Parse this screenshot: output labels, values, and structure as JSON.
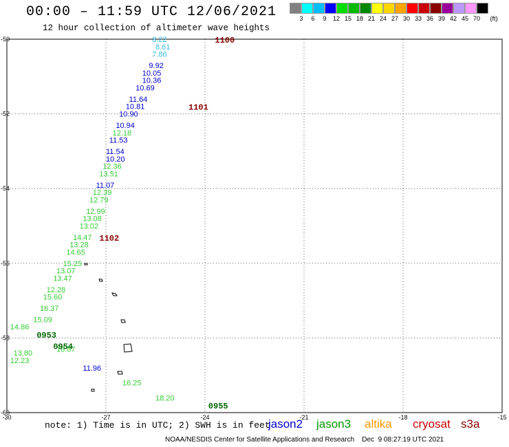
{
  "title": "00:00 – 11:59 UTC 12/06/2021",
  "subtitle": "12 hour collection of altimeter wave heights",
  "legend": {
    "unit": "(ft)",
    "colors": [
      "#808080",
      "#00ffff",
      "#00bfff",
      "#0000ff",
      "#00dd00",
      "#00bb00",
      "#008800",
      "#ffff00",
      "#ffd700",
      "#ffa500",
      "#ff0000",
      "#cc0000",
      "#8b0000",
      "#990099",
      "#bb99ff",
      "#ff99ff",
      "#000000"
    ],
    "labels": [
      "3",
      "6",
      "9",
      "12",
      "15",
      "18",
      "21",
      "24",
      "27",
      "30",
      "33",
      "36",
      "39",
      "42",
      "45",
      "70"
    ]
  },
  "chart_data": {
    "type": "map",
    "x_ticks": [
      "-30",
      "-27",
      "-24",
      "-21",
      "-18",
      "-15"
    ],
    "y_ticks": [
      "-50",
      "-52",
      "-54",
      "-56",
      "-58",
      "-60"
    ],
    "xlim": [
      -30,
      -15
    ],
    "ylim": [
      -60,
      -50
    ],
    "grid": true,
    "times": [
      {
        "text": "1100",
        "lon": -23.7,
        "lat": -50.0,
        "color": "#880000"
      },
      {
        "text": "1101",
        "lon": -24.5,
        "lat": -51.8,
        "color": "#880000"
      },
      {
        "text": "1102",
        "lon": -27.2,
        "lat": -55.3,
        "color": "#880000"
      },
      {
        "text": "0953",
        "lon": -29.1,
        "lat": -57.9,
        "color": "#006600"
      },
      {
        "text": "0954",
        "lon": -28.6,
        "lat": -58.2,
        "color": "#006600"
      },
      {
        "text": "0955",
        "lon": -23.9,
        "lat": -59.8,
        "color": "#006600"
      }
    ],
    "points": [
      {
        "swh": "8.22",
        "lon": -25.6,
        "lat": -50.0,
        "color": "#33bbdd"
      },
      {
        "swh": "8.61",
        "lon": -25.5,
        "lat": -50.2,
        "color": "#33bbdd"
      },
      {
        "swh": "7.86",
        "lon": -25.6,
        "lat": -50.4,
        "color": "#33bbdd"
      },
      {
        "swh": "9.92",
        "lon": -25.7,
        "lat": -50.7,
        "color": "#0000cc"
      },
      {
        "swh": "10.05",
        "lon": -25.9,
        "lat": -50.9,
        "color": "#0000cc"
      },
      {
        "swh": "10.36",
        "lon": -25.9,
        "lat": -51.1,
        "color": "#0000cc"
      },
      {
        "swh": "10.69",
        "lon": -26.1,
        "lat": -51.3,
        "color": "#0000cc"
      },
      {
        "swh": "11.64",
        "lon": -26.3,
        "lat": -51.6,
        "color": "#0000cc"
      },
      {
        "swh": "10.81",
        "lon": -26.4,
        "lat": -51.8,
        "color": "#0000cc"
      },
      {
        "swh": "10.90",
        "lon": -26.6,
        "lat": -52.0,
        "color": "#0000cc"
      },
      {
        "swh": "10.94",
        "lon": -26.7,
        "lat": -52.3,
        "color": "#0000cc"
      },
      {
        "swh": "12.18",
        "lon": -26.8,
        "lat": -52.5,
        "color": "#33cc33"
      },
      {
        "swh": "11.53",
        "lon": -26.9,
        "lat": -52.7,
        "color": "#0000cc"
      },
      {
        "swh": "11.54",
        "lon": -27.0,
        "lat": -53.0,
        "color": "#0000cc"
      },
      {
        "swh": "10.20",
        "lon": -27.0,
        "lat": -53.2,
        "color": "#0000cc"
      },
      {
        "swh": "12.36",
        "lon": -27.1,
        "lat": -53.4,
        "color": "#33cc33"
      },
      {
        "swh": "13.51",
        "lon": -27.2,
        "lat": -53.6,
        "color": "#33cc33"
      },
      {
        "swh": "11.07",
        "lon": -27.3,
        "lat": -53.9,
        "color": "#0000cc"
      },
      {
        "swh": "12.39",
        "lon": -27.4,
        "lat": -54.1,
        "color": "#33cc33"
      },
      {
        "swh": "12.79",
        "lon": -27.5,
        "lat": -54.3,
        "color": "#33cc33"
      },
      {
        "swh": "12.99",
        "lon": -27.6,
        "lat": -54.6,
        "color": "#33cc33"
      },
      {
        "swh": "13.08",
        "lon": -27.7,
        "lat": -54.8,
        "color": "#33cc33"
      },
      {
        "swh": "13.02",
        "lon": -27.8,
        "lat": -55.0,
        "color": "#33cc33"
      },
      {
        "swh": "14.47",
        "lon": -28.0,
        "lat": -55.3,
        "color": "#33cc33"
      },
      {
        "swh": "13.28",
        "lon": -28.1,
        "lat": -55.5,
        "color": "#33cc33"
      },
      {
        "swh": "14.65",
        "lon": -28.2,
        "lat": -55.7,
        "color": "#33cc33"
      },
      {
        "swh": "15.25",
        "lon": -28.3,
        "lat": -56.0,
        "color": "#33cc33"
      },
      {
        "swh": "13.07",
        "lon": -28.5,
        "lat": -56.2,
        "color": "#33cc33"
      },
      {
        "swh": "13.47",
        "lon": -28.6,
        "lat": -56.4,
        "color": "#33cc33"
      },
      {
        "swh": "12.28",
        "lon": -28.8,
        "lat": -56.7,
        "color": "#33cc33"
      },
      {
        "swh": "15.60",
        "lon": -28.9,
        "lat": -56.9,
        "color": "#33cc33"
      },
      {
        "swh": "16.37",
        "lon": -29.0,
        "lat": -57.2,
        "color": "#33cc33"
      },
      {
        "swh": "15.09",
        "lon": -29.2,
        "lat": -57.5,
        "color": "#33cc33"
      },
      {
        "swh": "14.86",
        "lon": -29.9,
        "lat": -57.7,
        "color": "#33cc33"
      },
      {
        "swh": "13.80",
        "lon": -29.8,
        "lat": -58.4,
        "color": "#33cc33"
      },
      {
        "swh": "12.23",
        "lon": -29.9,
        "lat": -58.6,
        "color": "#33cc33"
      },
      {
        "swh": "16.87",
        "lon": -28.5,
        "lat": -58.3,
        "color": "#33cc33"
      },
      {
        "swh": "11.96",
        "lon": -27.7,
        "lat": -58.8,
        "color": "#0000cc"
      },
      {
        "swh": "16.25",
        "lon": -26.5,
        "lat": -59.2,
        "color": "#33cc33"
      },
      {
        "swh": "18.20",
        "lon": -25.5,
        "lat": -59.6,
        "color": "#33cc33"
      }
    ]
  },
  "note": "note: 1) Time is in UTC; 2) SWH is in feet",
  "satellites": [
    {
      "name": "jason2",
      "color": "#0000cc"
    },
    {
      "name": "jason3",
      "color": "#009900"
    },
    {
      "name": "altika",
      "color": "#ff9900"
    },
    {
      "name": "cryosat",
      "color": "#cc0000"
    },
    {
      "name": "s3a",
      "color": "#880000"
    }
  ],
  "credit": "NOAA/NESDIS Center for Satellite Applications and Research    Dec  9 08:27:19 UTC 2021"
}
